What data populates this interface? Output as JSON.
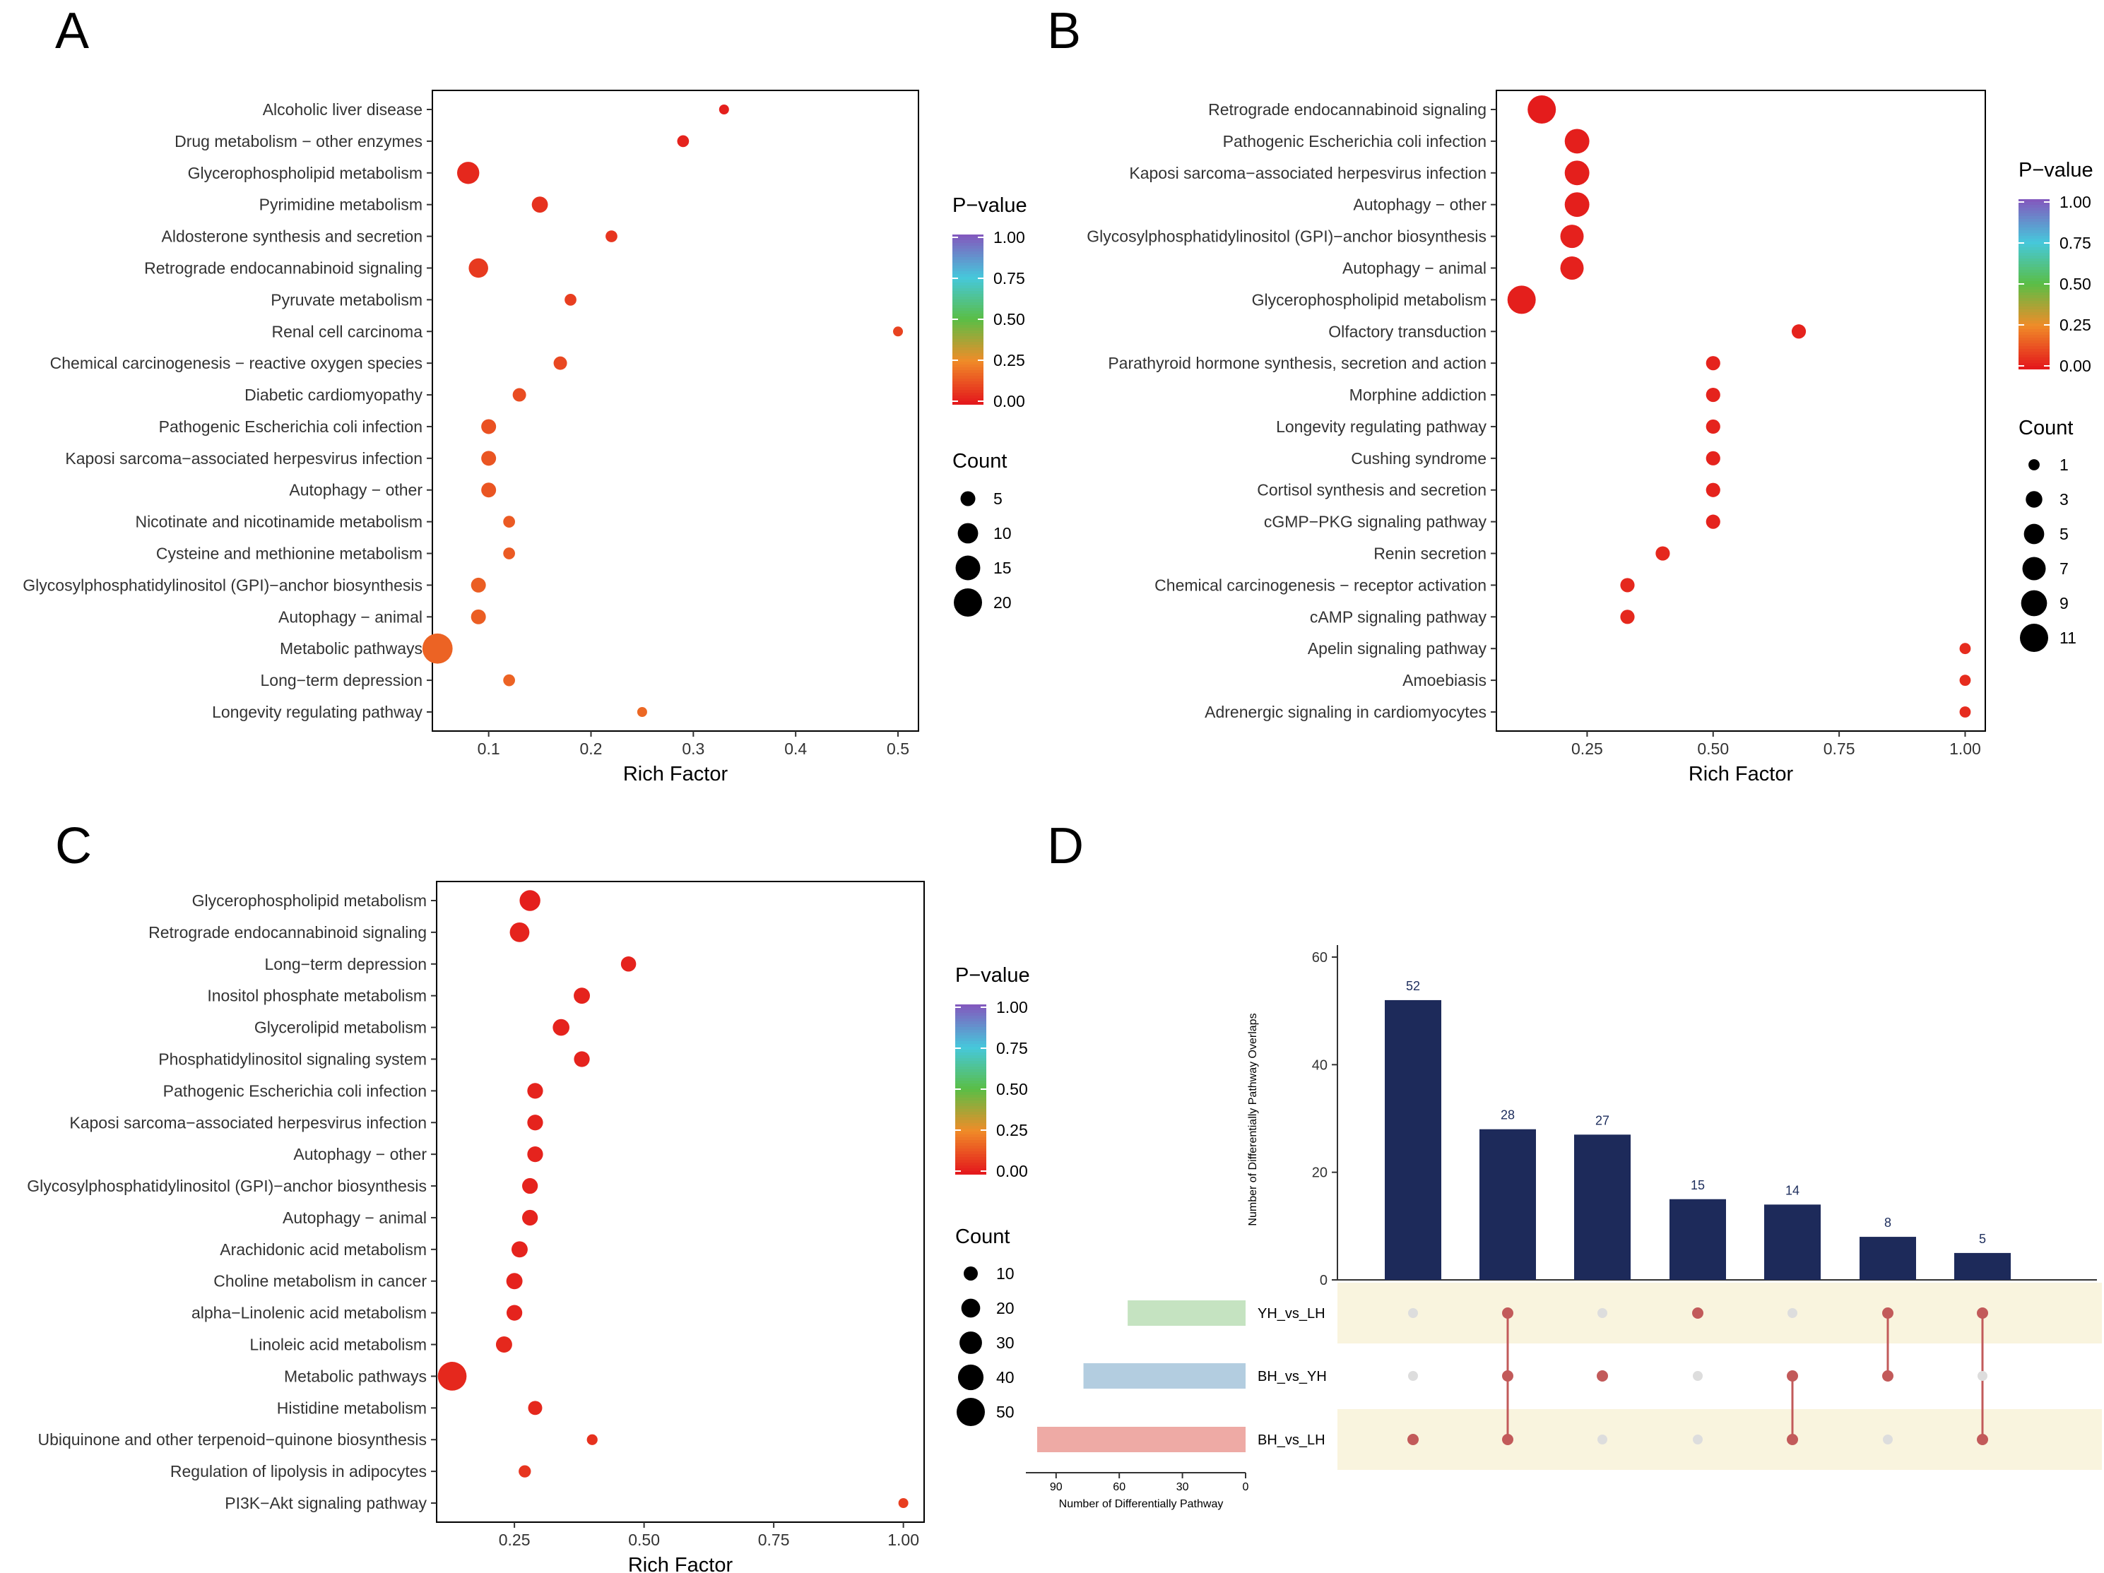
{
  "figure": {
    "colors": {
      "dot_red_strong": "#e41a1c",
      "dot_red_mid": "#e8432a",
      "dot_orange": "#e8602c",
      "bar_navy": "#1d2a5a",
      "stripe": "#f9f4de",
      "matrix_dot": "#c25a5a",
      "matrix_empty": "#dddddd",
      "set_yh_lh": "#c5e3c1",
      "set_bh_yh": "#b3cde0",
      "set_bh_lh": "#eeaaa5"
    }
  },
  "chart_data": [
    {
      "panel": "A",
      "type": "scatter",
      "xlabel": "Rich Factor",
      "xlim": [
        0.045,
        0.52
      ],
      "xticks": [
        "0.1",
        "0.2",
        "0.3",
        "0.4",
        "0.5"
      ],
      "xtick_values": [
        0.1,
        0.2,
        0.3,
        0.4,
        0.5
      ],
      "pathways": [
        {
          "name": "Alcoholic liver disease",
          "rich": 0.33,
          "pvalue": 0.01,
          "count": 2
        },
        {
          "name": "Drug metabolism − other enzymes",
          "rich": 0.29,
          "pvalue": 0.02,
          "count": 3
        },
        {
          "name": "Glycerophospholipid metabolism",
          "rich": 0.08,
          "pvalue": 0.03,
          "count": 12
        },
        {
          "name": "Pyrimidine metabolism",
          "rich": 0.15,
          "pvalue": 0.05,
          "count": 6
        },
        {
          "name": "Aldosterone synthesis and secretion",
          "rich": 0.22,
          "pvalue": 0.06,
          "count": 3
        },
        {
          "name": "Retrograde endocannabinoid signaling",
          "rich": 0.09,
          "pvalue": 0.07,
          "count": 9
        },
        {
          "name": "Pyruvate metabolism",
          "rich": 0.18,
          "pvalue": 0.08,
          "count": 3
        },
        {
          "name": "Renal cell carcinoma",
          "rich": 0.5,
          "pvalue": 0.09,
          "count": 1
        },
        {
          "name": "Chemical carcinogenesis − reactive oxygen species",
          "rich": 0.17,
          "pvalue": 0.1,
          "count": 4
        },
        {
          "name": "Diabetic cardiomyopathy",
          "rich": 0.13,
          "pvalue": 0.11,
          "count": 4
        },
        {
          "name": "Pathogenic Escherichia coli infection",
          "rich": 0.1,
          "pvalue": 0.12,
          "count": 5
        },
        {
          "name": "Kaposi sarcoma−associated herpesvirus infection",
          "rich": 0.1,
          "pvalue": 0.13,
          "count": 5
        },
        {
          "name": "Autophagy − other",
          "rich": 0.1,
          "pvalue": 0.13,
          "count": 5
        },
        {
          "name": "Nicotinate and nicotinamide metabolism",
          "rich": 0.12,
          "pvalue": 0.14,
          "count": 3
        },
        {
          "name": "Cysteine and methionine metabolism",
          "rich": 0.12,
          "pvalue": 0.14,
          "count": 3
        },
        {
          "name": "Glycosylphosphatidylinositol (GPI)−anchor biosynthesis",
          "rich": 0.09,
          "pvalue": 0.15,
          "count": 5
        },
        {
          "name": "Autophagy − animal",
          "rich": 0.09,
          "pvalue": 0.15,
          "count": 5
        },
        {
          "name": "Metabolic pathways",
          "rich": 0.05,
          "pvalue": 0.16,
          "count": 23
        },
        {
          "name": "Long−term depression",
          "rich": 0.12,
          "pvalue": 0.16,
          "count": 3
        },
        {
          "name": "Longevity regulating pathway",
          "rich": 0.25,
          "pvalue": 0.17,
          "count": 1
        }
      ],
      "legend_pvalue": {
        "title": "P−value",
        "ticks": [
          "1.00",
          "0.75",
          "0.50",
          "0.25",
          "0.00"
        ]
      },
      "legend_count": {
        "title": "Count",
        "values": [
          5,
          10,
          15,
          20
        ],
        "labels": [
          "5",
          "10",
          "15",
          "20"
        ]
      }
    },
    {
      "panel": "B",
      "type": "scatter",
      "xlabel": "Rich Factor",
      "xlim": [
        0.07,
        1.04
      ],
      "xticks": [
        "0.25",
        "0.50",
        "0.75",
        "1.00"
      ],
      "xtick_values": [
        0.25,
        0.5,
        0.75,
        1.0
      ],
      "pathways": [
        {
          "name": "Retrograde endocannabinoid signaling",
          "rich": 0.16,
          "pvalue": 0.005,
          "count": 11
        },
        {
          "name": "Pathogenic Escherichia coli infection",
          "rich": 0.23,
          "pvalue": 0.01,
          "count": 8
        },
        {
          "name": "Kaposi sarcoma−associated herpesvirus infection",
          "rich": 0.23,
          "pvalue": 0.01,
          "count": 8
        },
        {
          "name": "Autophagy − other",
          "rich": 0.23,
          "pvalue": 0.01,
          "count": 8
        },
        {
          "name": "Glycosylphosphatidylinositol (GPI)−anchor biosynthesis",
          "rich": 0.22,
          "pvalue": 0.015,
          "count": 7
        },
        {
          "name": "Autophagy − animal",
          "rich": 0.22,
          "pvalue": 0.015,
          "count": 7
        },
        {
          "name": "Glycerophospholipid metabolism",
          "rich": 0.12,
          "pvalue": 0.01,
          "count": 11
        },
        {
          "name": "Olfactory transduction",
          "rich": 0.67,
          "pvalue": 0.02,
          "count": 2
        },
        {
          "name": "Parathyroid hormone synthesis, secretion and action",
          "rich": 0.5,
          "pvalue": 0.02,
          "count": 2
        },
        {
          "name": "Morphine addiction",
          "rich": 0.5,
          "pvalue": 0.02,
          "count": 2
        },
        {
          "name": "Longevity regulating pathway",
          "rich": 0.5,
          "pvalue": 0.02,
          "count": 2
        },
        {
          "name": "Cushing syndrome",
          "rich": 0.5,
          "pvalue": 0.02,
          "count": 2
        },
        {
          "name": "Cortisol synthesis and secretion",
          "rich": 0.5,
          "pvalue": 0.02,
          "count": 2
        },
        {
          "name": "cGMP−PKG signaling pathway",
          "rich": 0.5,
          "pvalue": 0.02,
          "count": 2
        },
        {
          "name": "Renin secretion",
          "rich": 0.4,
          "pvalue": 0.03,
          "count": 2
        },
        {
          "name": "Chemical carcinogenesis − receptor activation",
          "rich": 0.33,
          "pvalue": 0.03,
          "count": 2
        },
        {
          "name": "cAMP signaling pathway",
          "rich": 0.33,
          "pvalue": 0.03,
          "count": 2
        },
        {
          "name": "Apelin signaling pathway",
          "rich": 1.0,
          "pvalue": 0.04,
          "count": 1
        },
        {
          "name": "Amoebiasis",
          "rich": 1.0,
          "pvalue": 0.04,
          "count": 1
        },
        {
          "name": "Adrenergic signaling in cardiomyocytes",
          "rich": 1.0,
          "pvalue": 0.04,
          "count": 1
        }
      ],
      "legend_pvalue": {
        "title": "P−value",
        "ticks": [
          "1.00",
          "0.75",
          "0.50",
          "0.25",
          "0.00"
        ]
      },
      "legend_count": {
        "title": "Count",
        "values": [
          1,
          3,
          5,
          7,
          9,
          11
        ],
        "labels": [
          "1",
          "3",
          "5",
          "7",
          "9",
          "11"
        ]
      }
    },
    {
      "panel": "C",
      "type": "scatter",
      "xlabel": "Rich Factor",
      "xlim": [
        0.1,
        1.04
      ],
      "xticks": [
        "0.25",
        "0.50",
        "0.75",
        "1.00"
      ],
      "xtick_values": [
        0.25,
        0.5,
        0.75,
        1.0
      ],
      "pathways": [
        {
          "name": "Glycerophospholipid metabolism",
          "rich": 0.28,
          "pvalue": 0.01,
          "count": 25
        },
        {
          "name": "Retrograde endocannabinoid signaling",
          "rich": 0.26,
          "pvalue": 0.02,
          "count": 22
        },
        {
          "name": "Long−term depression",
          "rich": 0.47,
          "pvalue": 0.02,
          "count": 12
        },
        {
          "name": "Inositol phosphate metabolism",
          "rich": 0.38,
          "pvalue": 0.02,
          "count": 14
        },
        {
          "name": "Glycerolipid metabolism",
          "rich": 0.34,
          "pvalue": 0.02,
          "count": 15
        },
        {
          "name": "Phosphatidylinositol signaling system",
          "rich": 0.38,
          "pvalue": 0.02,
          "count": 13
        },
        {
          "name": "Pathogenic Escherichia coli infection",
          "rich": 0.29,
          "pvalue": 0.02,
          "count": 13
        },
        {
          "name": "Kaposi sarcoma−associated herpesvirus infection",
          "rich": 0.29,
          "pvalue": 0.02,
          "count": 13
        },
        {
          "name": "Autophagy − other",
          "rich": 0.29,
          "pvalue": 0.02,
          "count": 13
        },
        {
          "name": "Glycosylphosphatidylinositol (GPI)−anchor biosynthesis",
          "rich": 0.28,
          "pvalue": 0.02,
          "count": 13
        },
        {
          "name": "Autophagy − animal",
          "rich": 0.28,
          "pvalue": 0.02,
          "count": 13
        },
        {
          "name": "Arachidonic acid metabolism",
          "rich": 0.26,
          "pvalue": 0.02,
          "count": 14
        },
        {
          "name": "Choline metabolism in cancer",
          "rich": 0.25,
          "pvalue": 0.02,
          "count": 14
        },
        {
          "name": "alpha−Linolenic acid metabolism",
          "rich": 0.25,
          "pvalue": 0.02,
          "count": 13
        },
        {
          "name": "Linoleic acid metabolism",
          "rich": 0.23,
          "pvalue": 0.03,
          "count": 14
        },
        {
          "name": "Metabolic pathways",
          "rich": 0.13,
          "pvalue": 0.03,
          "count": 52
        },
        {
          "name": "Histidine metabolism",
          "rich": 0.29,
          "pvalue": 0.03,
          "count": 10
        },
        {
          "name": "Ubiquinone and other terpenoid−quinone biosynthesis",
          "rich": 0.4,
          "pvalue": 0.05,
          "count": 5
        },
        {
          "name": "Regulation of lipolysis in adipocytes",
          "rich": 0.27,
          "pvalue": 0.06,
          "count": 7
        },
        {
          "name": "PI3K−Akt signaling pathway",
          "rich": 1.0,
          "pvalue": 0.08,
          "count": 2
        }
      ],
      "legend_pvalue": {
        "title": "P−value",
        "ticks": [
          "1.00",
          "0.75",
          "0.50",
          "0.25",
          "0.00"
        ]
      },
      "legend_count": {
        "title": "Count",
        "values": [
          10,
          20,
          30,
          40,
          50
        ],
        "labels": [
          "10",
          "20",
          "30",
          "40",
          "50"
        ]
      }
    },
    {
      "panel": "D",
      "type": "bar",
      "subtype": "upset",
      "ylabel": "Number of Differentially Pathway Overlaps",
      "ylim": [
        0,
        62
      ],
      "yticks": [
        "0",
        "20",
        "40",
        "60"
      ],
      "ytick_values": [
        0,
        20,
        40,
        60
      ],
      "intersections": [
        {
          "value": 52,
          "label": "52",
          "sets": [
            false,
            false,
            true
          ]
        },
        {
          "value": 28,
          "label": "28",
          "sets": [
            true,
            true,
            true
          ]
        },
        {
          "value": 27,
          "label": "27",
          "sets": [
            false,
            true,
            false
          ]
        },
        {
          "value": 15,
          "label": "15",
          "sets": [
            true,
            false,
            false
          ]
        },
        {
          "value": 14,
          "label": "14",
          "sets": [
            false,
            true,
            true
          ]
        },
        {
          "value": 8,
          "label": "8",
          "sets": [
            true,
            true,
            false
          ]
        },
        {
          "value": 5,
          "label": "5",
          "sets": [
            true,
            false,
            true
          ]
        }
      ],
      "sets": [
        {
          "name": "YH_vs_LH",
          "size": 56
        },
        {
          "name": "BH_vs_YH",
          "size": 77
        },
        {
          "name": "BH_vs_LH",
          "size": 99
        }
      ],
      "set_xlabel": "Number of Differentially Pathway",
      "set_xlim": [
        0,
        100
      ],
      "set_xticks": [
        "90",
        "60",
        "30",
        "0"
      ],
      "set_xtick_values": [
        90,
        60,
        30,
        0
      ]
    }
  ]
}
